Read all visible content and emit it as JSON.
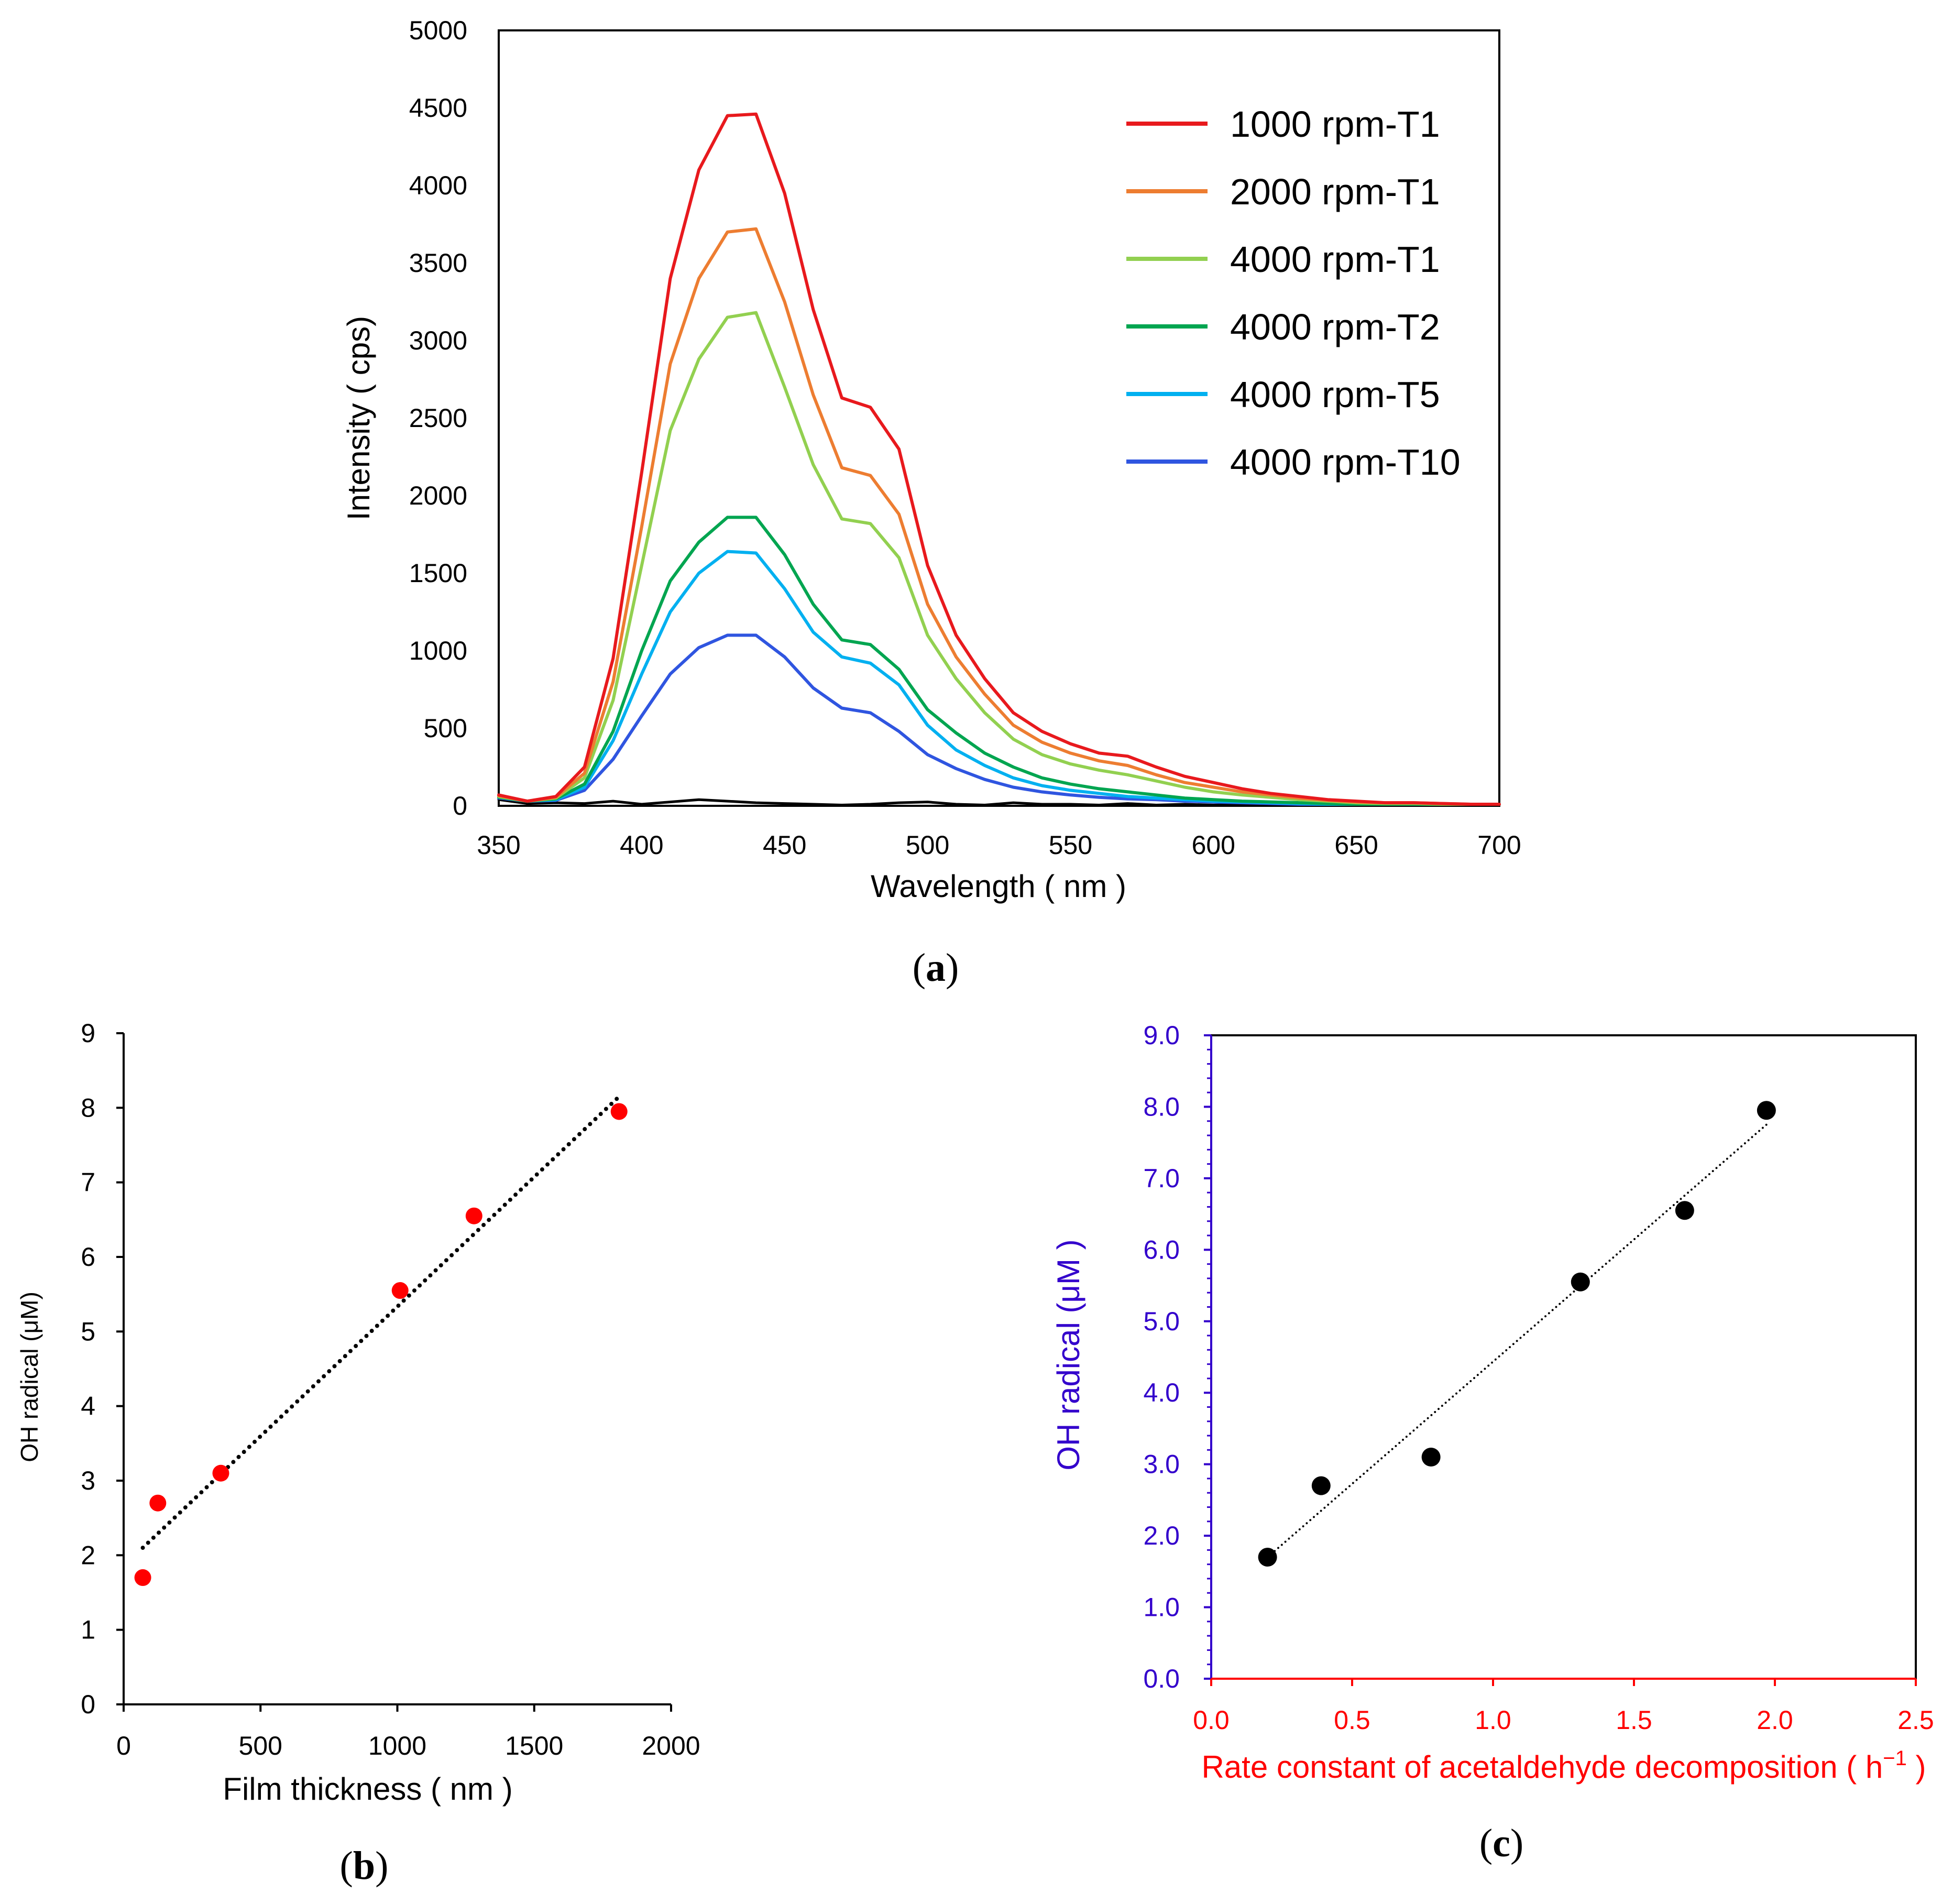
{
  "figure": {
    "panel_a": {
      "label_open": "(",
      "label_letter": "a",
      "label_close": ")"
    },
    "panel_b": {
      "label_open": "(",
      "label_letter": "b",
      "label_close": ")"
    },
    "panel_c": {
      "label_open": "(",
      "label_letter": "c",
      "label_close": ")"
    }
  },
  "chart_data": [
    {
      "id": "a",
      "type": "line",
      "title": "",
      "xlabel": "Wavelength ( nm )",
      "ylabel": "Intensity ( cps)",
      "xlim": [
        350,
        700
      ],
      "ylim": [
        0,
        5000
      ],
      "xticks": [
        350,
        400,
        450,
        500,
        550,
        600,
        650,
        700
      ],
      "yticks": [
        0,
        500,
        1000,
        1500,
        2000,
        2500,
        3000,
        3500,
        4000,
        4500,
        5000
      ],
      "legend_position": "top-right",
      "x": [
        350,
        360,
        370,
        380,
        390,
        400,
        410,
        420,
        430,
        440,
        450,
        460,
        470,
        480,
        490,
        500,
        510,
        520,
        530,
        540,
        550,
        560,
        570,
        580,
        590,
        600,
        610,
        620,
        630,
        640,
        650,
        660,
        670,
        680,
        690,
        700
      ],
      "series": [
        {
          "name": "1000 rpm-T1",
          "color": "#e8191d",
          "values": [
            70,
            30,
            60,
            250,
            950,
            2150,
            3400,
            4100,
            4450,
            4460,
            3950,
            3200,
            2630,
            2570,
            2300,
            1550,
            1100,
            820,
            600,
            480,
            400,
            340,
            320,
            250,
            190,
            150,
            110,
            80,
            60,
            40,
            30,
            20,
            20,
            15,
            10,
            10
          ]
        },
        {
          "name": "2000 rpm-T1",
          "color": "#ed7d31",
          "values": [
            65,
            30,
            55,
            210,
            800,
            1800,
            2850,
            3400,
            3700,
            3720,
            3250,
            2650,
            2180,
            2130,
            1880,
            1300,
            960,
            720,
            520,
            410,
            340,
            290,
            260,
            200,
            150,
            120,
            90,
            70,
            50,
            35,
            25,
            20,
            20,
            15,
            10,
            10
          ]
        },
        {
          "name": "4000 rpm-T1",
          "color": "#92d050",
          "values": [
            60,
            30,
            50,
            180,
            680,
            1550,
            2420,
            2880,
            3150,
            3180,
            2700,
            2200,
            1850,
            1820,
            1600,
            1100,
            820,
            600,
            430,
            330,
            270,
            230,
            200,
            160,
            120,
            90,
            70,
            55,
            40,
            30,
            20,
            15,
            15,
            10,
            10,
            10
          ]
        },
        {
          "name": "4000 rpm-T2",
          "color": "#00a550",
          "values": [
            55,
            30,
            45,
            140,
            480,
            1000,
            1450,
            1700,
            1860,
            1860,
            1620,
            1300,
            1070,
            1040,
            880,
            620,
            470,
            340,
            250,
            180,
            140,
            110,
            90,
            70,
            50,
            40,
            30,
            25,
            20,
            15,
            10,
            10,
            10,
            10,
            10,
            10
          ]
        },
        {
          "name": "4000 rpm-T5",
          "color": "#00b0f0",
          "values": [
            55,
            30,
            40,
            120,
            420,
            850,
            1250,
            1500,
            1640,
            1630,
            1400,
            1120,
            960,
            920,
            780,
            520,
            360,
            260,
            180,
            130,
            100,
            80,
            60,
            50,
            40,
            30,
            25,
            20,
            15,
            10,
            10,
            10,
            10,
            10,
            10,
            10
          ]
        },
        {
          "name": "4000 rpm-T10",
          "color": "#2f55e0",
          "values": [
            50,
            30,
            35,
            100,
            300,
            580,
            850,
            1020,
            1100,
            1100,
            960,
            760,
            630,
            600,
            480,
            330,
            240,
            170,
            120,
            90,
            70,
            55,
            45,
            40,
            30,
            25,
            20,
            15,
            10,
            10,
            10,
            10,
            10,
            10,
            10,
            10
          ]
        },
        {
          "name": "baseline",
          "color": "#000000",
          "legend": false,
          "values": [
            40,
            15,
            20,
            15,
            30,
            10,
            25,
            40,
            30,
            20,
            15,
            10,
            5,
            10,
            20,
            25,
            10,
            5,
            20,
            10,
            10,
            5,
            15,
            5,
            10,
            5,
            10,
            5,
            10,
            5,
            5,
            10,
            5,
            10,
            5,
            5
          ]
        }
      ]
    },
    {
      "id": "b",
      "type": "scatter",
      "title": "",
      "xlabel": "Film thickness ( nm )",
      "ylabel": "OH radical  (μM)",
      "xlim": [
        0,
        2000
      ],
      "ylim": [
        0,
        9
      ],
      "xticks": [
        0,
        500,
        1000,
        1500,
        2000
      ],
      "yticks": [
        0,
        1,
        2,
        3,
        4,
        5,
        6,
        7,
        8,
        9
      ],
      "marker_color": "#ff0000",
      "points": [
        {
          "x": 70,
          "y": 1.7
        },
        {
          "x": 125,
          "y": 2.7
        },
        {
          "x": 355,
          "y": 3.1
        },
        {
          "x": 1010,
          "y": 5.55
        },
        {
          "x": 1280,
          "y": 6.55
        },
        {
          "x": 1810,
          "y": 7.95
        }
      ],
      "trendline": {
        "style": "dotted",
        "x": [
          70,
          1810
        ],
        "y": [
          2.1,
          8.15
        ]
      }
    },
    {
      "id": "c",
      "type": "scatter",
      "title": "",
      "xlabel": "Rate constant of acetaldehyde decomposition ( h",
      "xlabel_sup": "−1",
      "xlabel_end": " )",
      "ylabel": "OH radical  (μM )",
      "xlabel_color": "#ff0000",
      "ylabel_color": "#3300cc",
      "xlim": [
        0.0,
        2.5
      ],
      "ylim": [
        0.0,
        9.0
      ],
      "xticks": [
        "0.0",
        "0.5",
        "1.0",
        "1.5",
        "2.0",
        "2.5"
      ],
      "yticks": [
        "0.0",
        "1.0",
        "2.0",
        "3.0",
        "4.0",
        "5.0",
        "6.0",
        "7.0",
        "8.0",
        "9.0"
      ],
      "marker_color": "#000000",
      "points": [
        {
          "x": 0.2,
          "y": 1.7
        },
        {
          "x": 0.39,
          "y": 2.7
        },
        {
          "x": 0.78,
          "y": 3.1
        },
        {
          "x": 1.31,
          "y": 5.55
        },
        {
          "x": 1.68,
          "y": 6.55
        },
        {
          "x": 1.97,
          "y": 7.95
        }
      ],
      "trendline": {
        "style": "dotted",
        "x": [
          0.2,
          1.97
        ],
        "y": [
          1.7,
          7.75
        ]
      }
    }
  ]
}
